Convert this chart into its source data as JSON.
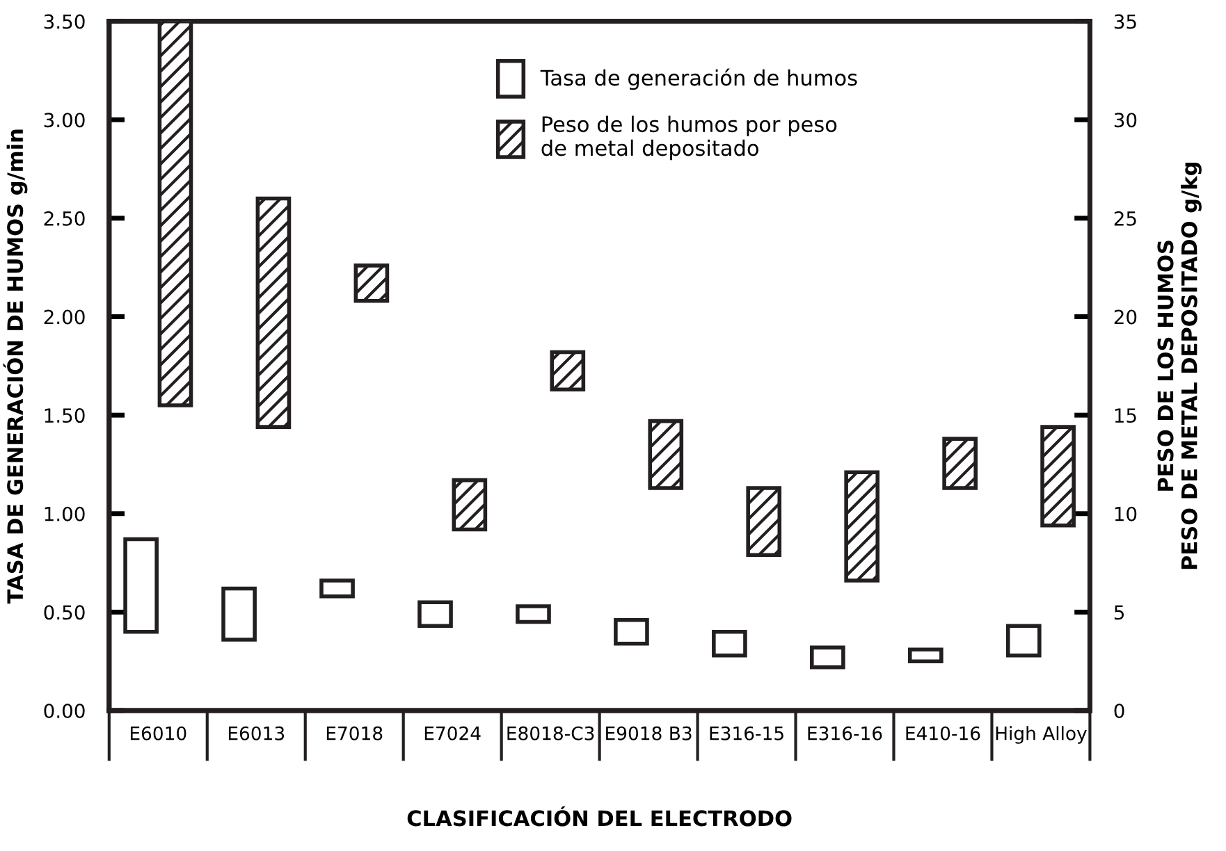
{
  "chart_data": {
    "type": "bar",
    "xlabel": "CLASIFICACIÓN DEL ELECTRODO",
    "ylabel": "TASA DE GENERACIÓN DE HUMOS g/min",
    "y2label": "PESO DE LOS HUMOS\nPESO DE METAL DEPOSITADO g/kg",
    "categories": [
      "E6010",
      "E6013",
      "E7018",
      "E7024",
      "E8018-C3",
      "E9018 B3",
      "E316-15",
      "E316-16",
      "E410-16",
      "High Alloy"
    ],
    "series": [
      {
        "name": "Tasa de generación de humos",
        "color": "#231f20",
        "base": [
          0.4,
          0.36,
          0.58,
          0.43,
          0.45,
          0.34,
          0.28,
          0.22,
          0.25,
          0.28
        ],
        "values": [
          0.47,
          0.26,
          0.08,
          0.12,
          0.08,
          0.12,
          0.12,
          0.1,
          0.06,
          0.15
        ]
      },
      {
        "name": "Peso de los humos por peso\nde metal depositado",
        "color": "#231f20",
        "axis": "y2",
        "base": [
          15.5,
          14.4,
          20.8,
          9.2,
          16.3,
          11.3,
          7.9,
          6.6,
          11.3,
          9.4
        ],
        "values": [
          19.5,
          11.6,
          1.8,
          2.5,
          1.9,
          3.4,
          3.4,
          5.5,
          2.5,
          5.0
        ]
      }
    ],
    "ylim": [
      0,
      3.5
    ],
    "yticks": [
      {
        "value": 0,
        "label": "0.00"
      },
      {
        "value": 0.5,
        "label": "0.50"
      },
      {
        "value": 1,
        "label": "1.00"
      },
      {
        "value": 1.5,
        "label": "1.50"
      },
      {
        "value": 2,
        "label": "2.00"
      },
      {
        "value": 2.5,
        "label": "2.50"
      },
      {
        "value": 3,
        "label": "3.00"
      },
      {
        "value": 3.5,
        "label": "3.50"
      }
    ],
    "y2lim": [
      0,
      35
    ],
    "y2ticks": [
      0,
      5,
      10,
      15,
      20,
      25,
      30,
      35
    ],
    "legend": "top",
    "grid": false
  }
}
